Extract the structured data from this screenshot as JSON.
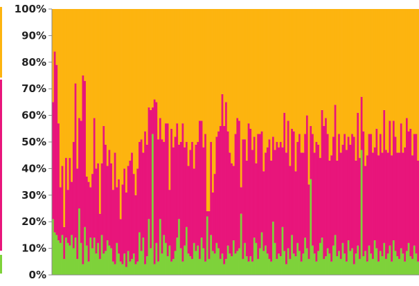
{
  "chart_data": {
    "type": "bar",
    "stacking": "percent",
    "ylim": [
      0,
      100
    ],
    "yticks": [
      "0%",
      "10%",
      "20%",
      "30%",
      "40%",
      "50%",
      "60%",
      "70%",
      "80%",
      "90%",
      "100%"
    ],
    "grid": false,
    "legend": "none",
    "colors": {
      "bottom": "#7ed23a",
      "middle": "#e8157b",
      "top": "#fdb40f"
    },
    "series": [
      {
        "values": [
          21,
          16,
          15,
          13,
          12,
          15,
          6,
          14,
          12,
          11,
          15,
          10,
          14,
          6,
          25,
          12,
          4,
          18,
          11,
          5,
          14,
          10,
          14,
          8,
          12,
          6,
          15,
          8,
          9,
          13,
          11,
          10,
          5,
          4,
          12,
          8,
          5,
          4,
          8,
          3,
          9,
          5,
          6,
          8,
          4,
          5,
          16,
          9,
          14,
          4,
          7,
          21,
          10,
          53,
          4,
          12,
          5,
          21,
          8,
          15,
          12,
          7,
          11,
          5,
          6,
          9,
          14,
          21,
          10,
          5,
          11,
          18,
          8,
          7,
          6,
          12,
          9,
          11,
          6,
          14,
          10,
          5,
          22,
          6,
          15,
          9,
          8,
          12,
          10,
          6,
          8,
          4,
          6,
          11,
          8,
          7,
          13,
          8,
          9,
          10,
          23,
          6,
          12,
          7,
          5,
          7,
          5,
          14,
          12,
          6,
          10,
          16,
          9,
          11,
          8,
          6,
          5,
          20,
          12,
          6,
          8,
          7,
          18,
          9,
          4,
          10,
          6,
          15,
          8,
          7,
          12,
          9,
          5,
          8,
          14,
          10,
          6,
          36,
          11,
          8,
          5,
          9,
          12,
          14,
          6,
          7,
          10,
          8,
          5,
          11,
          15,
          7,
          9,
          6,
          12,
          8,
          5,
          13,
          9,
          10,
          4,
          8,
          11,
          6,
          47,
          7,
          9,
          5,
          11,
          8,
          6,
          13,
          10,
          5,
          9,
          7,
          12,
          6,
          8,
          11,
          5,
          13,
          9,
          7,
          6,
          10,
          8,
          5,
          9,
          12,
          7,
          6,
          11,
          8,
          5
        ]
      },
      {
        "values": [
          44,
          68,
          64,
          44,
          21,
          26,
          12,
          30,
          20,
          33,
          20,
          40,
          58,
          34,
          34,
          46,
          71,
          55,
          26,
          30,
          19,
          28,
          45,
          32,
          30,
          17,
          27,
          48,
          40,
          28,
          36,
          32,
          27,
          42,
          21,
          28,
          16,
          30,
          32,
          28,
          32,
          38,
          40,
          30,
          26,
          35,
          34,
          42,
          32,
          50,
          42,
          42,
          52,
          10,
          62,
          53,
          46,
          38,
          43,
          35,
          45,
          50,
          21,
          50,
          42,
          43,
          43,
          28,
          40,
          52,
          37,
          32,
          33,
          40,
          44,
          28,
          40,
          39,
          52,
          44,
          38,
          48,
          2,
          18,
          35,
          22,
          30,
          40,
          44,
          50,
          60,
          52,
          59,
          43,
          38,
          35,
          28,
          45,
          50,
          48,
          10,
          45,
          39,
          36,
          52,
          48,
          42,
          38,
          30,
          47,
          43,
          38,
          30,
          35,
          40,
          45,
          38,
          32,
          35,
          44,
          40,
          43,
          30,
          52,
          42,
          48,
          35,
          40,
          46,
          32,
          38,
          44,
          41,
          38,
          39,
          50,
          28,
          20,
          42,
          38,
          45,
          40,
          32,
          48,
          50,
          52,
          43,
          35,
          40,
          41,
          49,
          36,
          44,
          40,
          37,
          45,
          42,
          39,
          40,
          43,
          48,
          35,
          50,
          38,
          20,
          47,
          32,
          40,
          42,
          45,
          40,
          35,
          45,
          40,
          44,
          39,
          50,
          41,
          38,
          47,
          40,
          45,
          43,
          39,
          40,
          47,
          38,
          43,
          50,
          42,
          48,
          39,
          42,
          45,
          38
        ]
      },
      {
        "values": [
          35,
          16,
          21,
          43,
          67,
          59,
          82,
          56,
          68,
          56,
          65,
          50,
          28,
          60,
          41,
          42,
          25,
          27,
          63,
          65,
          67,
          62,
          41,
          60,
          58,
          77,
          58,
          44,
          51,
          59,
          53,
          58,
          68,
          54,
          67,
          64,
          79,
          66,
          60,
          69,
          59,
          57,
          54,
          62,
          70,
          60,
          50,
          49,
          54,
          46,
          51,
          37,
          38,
          37,
          34,
          35,
          49,
          41,
          49,
          50,
          43,
          43,
          68,
          45,
          52,
          48,
          43,
          51,
          50,
          43,
          52,
          50,
          59,
          53,
          50,
          60,
          51,
          50,
          42,
          42,
          52,
          47,
          76,
          76,
          50,
          69,
          62,
          48,
          46,
          44,
          32,
          44,
          35,
          46,
          54,
          58,
          59,
          47,
          41,
          42,
          67,
          49,
          49,
          57,
          43,
          45,
          53,
          48,
          58,
          47,
          47,
          46,
          61,
          54,
          52,
          49,
          57,
          48,
          53,
          50,
          52,
          50,
          52,
          39,
          54,
          42,
          59,
          45,
          46,
          61,
          50,
          47,
          54,
          54,
          47,
          40,
          66,
          44,
          47,
          54,
          50,
          51,
          56,
          38,
          44,
          41,
          47,
          57,
          55,
          48,
          36,
          57,
          47,
          54,
          51,
          47,
          53,
          48,
          51,
          47,
          48,
          57,
          39,
          56,
          33,
          46,
          59,
          55,
          47,
          47,
          54,
          52,
          45,
          55,
          47,
          54,
          38,
          53,
          54,
          42,
          55,
          42,
          48,
          54,
          54,
          43,
          54,
          52,
          41,
          46,
          45,
          55,
          47,
          47,
          57
        ]
      }
    ]
  }
}
